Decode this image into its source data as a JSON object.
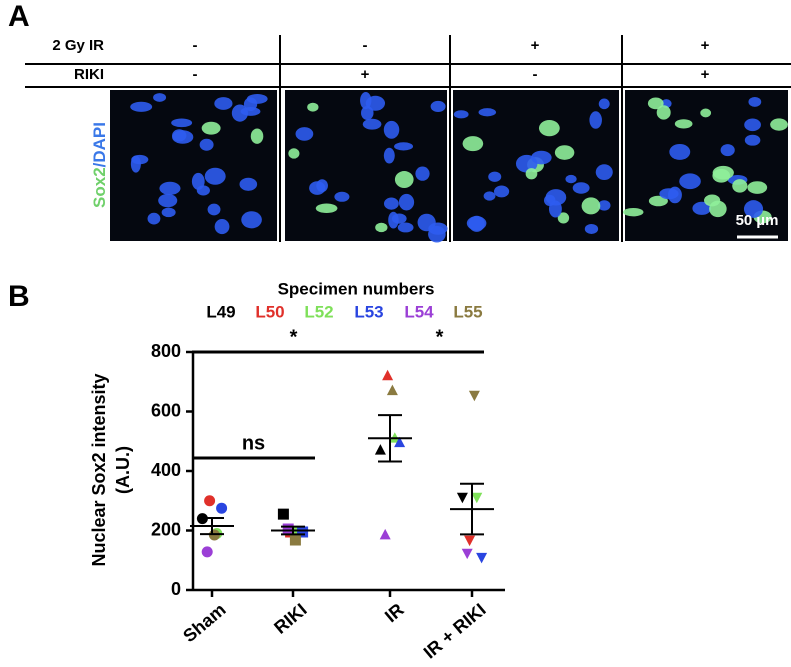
{
  "panel_a": {
    "label": "A",
    "rows": [
      {
        "label": "2 Gy IR",
        "values": [
          "-",
          "-",
          "+",
          "+"
        ]
      },
      {
        "label": "RIKI",
        "values": [
          "-",
          "+",
          "-",
          "+"
        ]
      }
    ],
    "stain": [
      "Sox2",
      "/DAPI"
    ],
    "stain_colors": [
      "#6fd06a",
      "#3a78e8"
    ],
    "scale_bar": "50 µm"
  },
  "chart_data": {
    "type": "scatter",
    "panel_label": "B",
    "legend_title": "Specimen numbers",
    "categories": [
      "Sham",
      "RIKI",
      "IR",
      "IR + RIKI"
    ],
    "marker_shapes": [
      "circle",
      "square",
      "triangle-up",
      "triangle-down"
    ],
    "series": [
      {
        "name": "L49",
        "color": "#000000",
        "values": [
          240,
          255,
          470,
          312
        ]
      },
      {
        "name": "L50",
        "color": "#e0302a",
        "values": [
          300,
          195,
          720,
          168
        ]
      },
      {
        "name": "L52",
        "color": "#7fe05a",
        "values": [
          190,
          195,
          510,
          312
        ]
      },
      {
        "name": "L53",
        "color": "#2a45e0",
        "values": [
          275,
          195,
          495,
          110
        ]
      },
      {
        "name": "L54",
        "color": "#9b3fd6",
        "values": [
          128,
          205,
          185,
          124
        ]
      },
      {
        "name": "L55",
        "color": "#8a7a40",
        "values": [
          185,
          168,
          670,
          655
        ]
      }
    ],
    "means": [
      215,
      200,
      510,
      272
    ],
    "sem": [
      27,
      13,
      78,
      85
    ],
    "y_label": [
      "Nuclear Sox2 intensity",
      "(A.U.)"
    ],
    "ylim": [
      0,
      800
    ],
    "yticks": [
      0,
      200,
      400,
      600,
      800
    ],
    "annotations": [
      {
        "text": "*"
      },
      {
        "text": "*"
      },
      {
        "text": "ns"
      }
    ]
  }
}
